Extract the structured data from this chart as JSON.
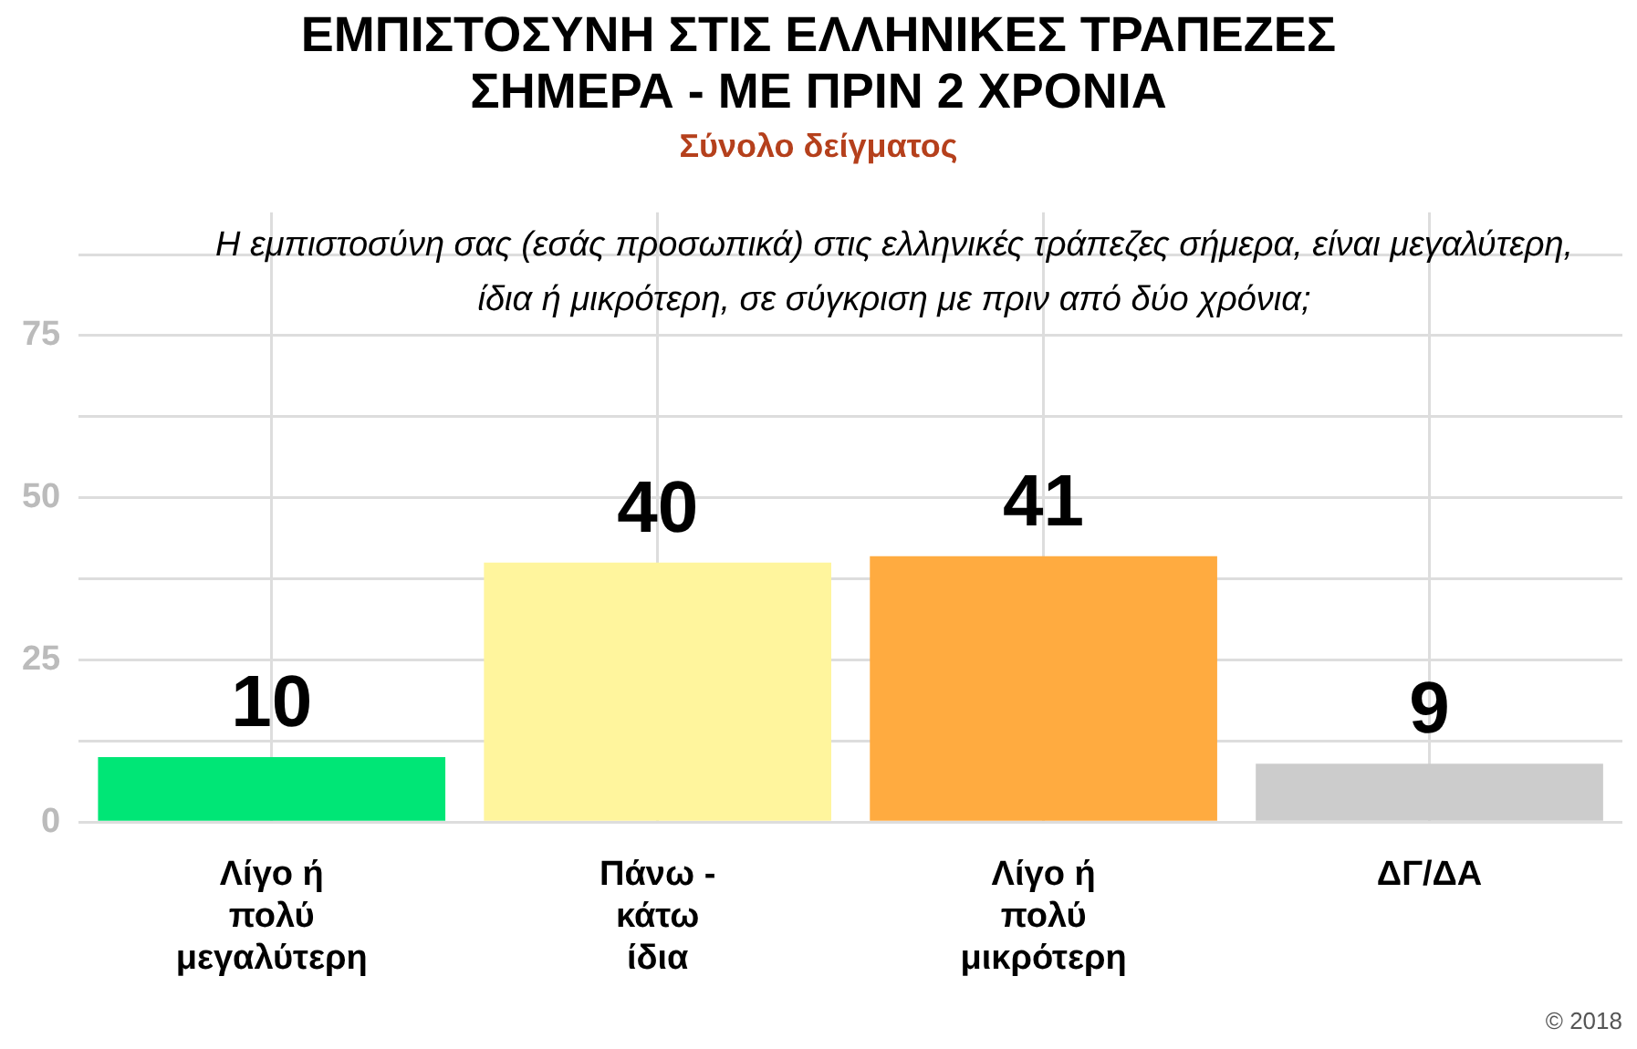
{
  "chart_data": {
    "type": "bar",
    "title": "ΕΜΠΙΣΤΟΣΥΝΗ ΣΤΙΣ ΕΛΛΗΝΙΚΕΣ ΤΡΑΠΕΖΕΣ\nΣΗΜΕΡΑ - ΜΕ ΠΡΙΝ 2 ΧΡΟΝΙΑ",
    "subtitle": "Σύνολο δείγματος",
    "annotations": [
      "Η εμπιστοσύνη σας (εσάς προσωπικά) στις ελληνικές τράπεζες σήμερα, είναι μεγαλύτερη, ίδια ή μικρότερη, σε σύγκριση με πριν από δύο χρόνια;",
      "© 2018"
    ],
    "categories": [
      "Λίγο ή\nπολύ\nμεγαλύτερη",
      "Πάνω -\nκάτω\nίδια",
      "Λίγο ή\nπολύ\nμικρότερη",
      "ΔΓ/ΔΑ"
    ],
    "values": [
      10,
      40,
      41,
      9
    ],
    "colors": [
      "#00e676",
      "#fff59d",
      "#ffab40",
      "#cccccc"
    ],
    "ylim": [
      0,
      94
    ],
    "yticks": [
      0,
      {
        "value": 12.5,
        "label": null
      },
      25,
      {
        "value": 37.5,
        "label": null
      },
      50,
      {
        "value": 62.5,
        "label": null
      },
      75,
      {
        "value": 87.5,
        "label": null
      }
    ],
    "grid": true,
    "data_labels": true,
    "legend": false
  }
}
